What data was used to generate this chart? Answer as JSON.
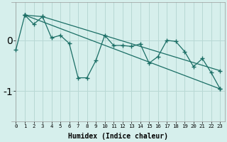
{
  "xlabel": "Humidex (Indice chaleur)",
  "background_color": "#d6efec",
  "grid_color": "#b8d8d4",
  "line_color": "#1a6e65",
  "xlim": [
    -0.5,
    23.5
  ],
  "ylim": [
    -1.6,
    0.75
  ],
  "yticks": [
    0,
    -1
  ],
  "xticks": [
    0,
    1,
    2,
    3,
    4,
    5,
    6,
    7,
    8,
    9,
    10,
    11,
    12,
    13,
    14,
    15,
    16,
    17,
    18,
    19,
    20,
    21,
    22,
    23
  ],
  "line1_x": [
    0,
    1,
    2,
    3,
    4,
    5,
    6,
    7,
    8,
    9,
    10,
    11,
    12,
    13,
    14,
    15,
    16,
    17,
    18,
    19,
    20,
    21,
    22,
    23
  ],
  "line1_y": [
    -0.18,
    0.5,
    0.32,
    0.47,
    0.05,
    0.1,
    -0.06,
    -0.74,
    -0.74,
    -0.4,
    0.1,
    -0.1,
    -0.1,
    -0.12,
    -0.07,
    -0.45,
    -0.32,
    0.0,
    -0.02,
    -0.22,
    -0.52,
    -0.36,
    -0.64,
    -0.96
  ],
  "line2_x": [
    1,
    23
  ],
  "line2_y": [
    0.5,
    -0.96
  ],
  "line3_x": [
    1,
    3,
    23
  ],
  "line3_y": [
    0.5,
    0.47,
    -0.6
  ],
  "line4_x": [
    1,
    3,
    23
  ],
  "line4_y": [
    0.5,
    0.47,
    -0.8
  ]
}
